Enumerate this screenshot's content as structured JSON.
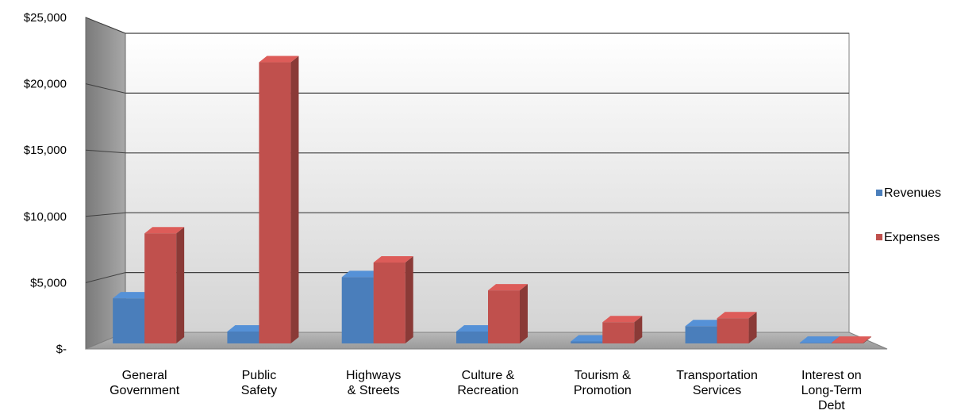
{
  "chart_data": {
    "type": "bar",
    "title": "",
    "xlabel": "",
    "ylabel": "",
    "ylim": [
      0,
      25000
    ],
    "y_ticks": [
      {
        "value": 25000,
        "label": "$25,000"
      },
      {
        "value": 20000,
        "label": "$20,000"
      },
      {
        "value": 15000,
        "label": "$15,000"
      },
      {
        "value": 10000,
        "label": "$10,000"
      },
      {
        "value": 5000,
        "label": "$5,000"
      },
      {
        "value": 0,
        "label": "$-"
      }
    ],
    "grid": true,
    "legend_position": "right",
    "categories": [
      [
        "General",
        "Government"
      ],
      [
        "Public",
        "Safety"
      ],
      [
        "Highways",
        "& Streets"
      ],
      [
        "Culture &",
        "Recreation"
      ],
      [
        "Tourism &",
        "Promotion"
      ],
      [
        "Transportation",
        "Services"
      ],
      [
        "Interest on",
        "Long-Term",
        "Debt"
      ]
    ],
    "series": [
      {
        "name": "Revenues",
        "color": "#4a7ebb",
        "values": [
          3400,
          900,
          5000,
          900,
          150,
          1300,
          50
        ]
      },
      {
        "name": "Expenses",
        "color": "#c0504d",
        "values": [
          8300,
          21200,
          6100,
          4000,
          1600,
          1900,
          50
        ]
      }
    ]
  }
}
